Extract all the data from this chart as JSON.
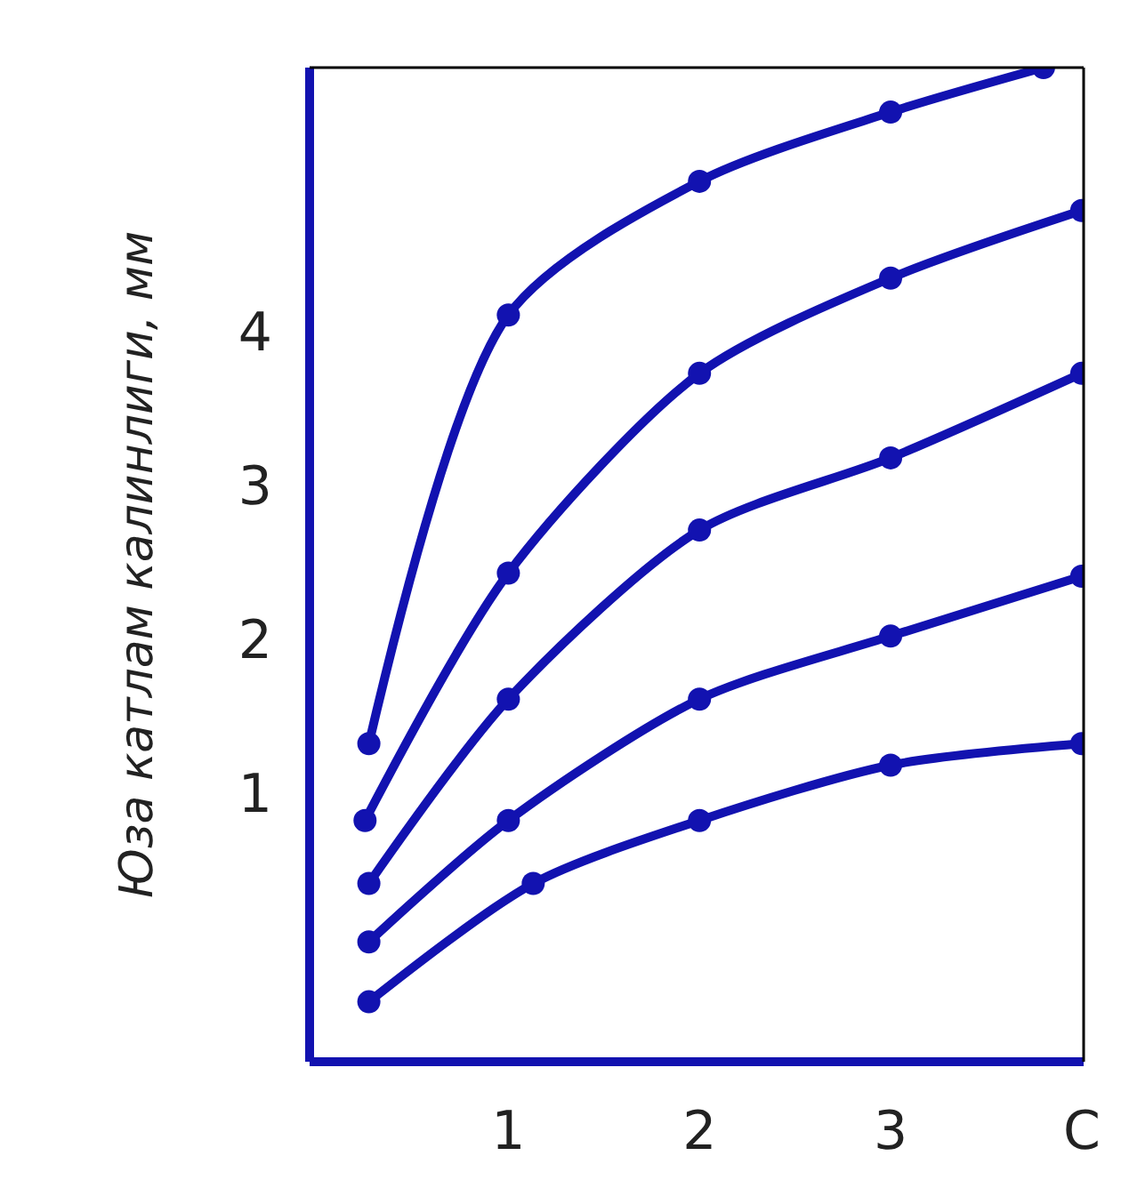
{
  "chart_data": {
    "type": "line",
    "ylabel": "Юза катлам калинлиги, мм",
    "xlim": [
      -0.04,
      4.01
    ],
    "ylim": [
      -0.75,
      5.72
    ],
    "xticks": [
      1,
      2,
      3,
      {
        "value": 4,
        "label": "C"
      }
    ],
    "yticks": [
      1,
      2,
      3,
      4
    ],
    "grid": false,
    "marker": "circle",
    "line_style": "solid",
    "series": [
      {
        "color": "#1212b0",
        "x": [
          0.27,
          1.0,
          2.0,
          3.0,
          3.8
        ],
        "values": [
          1.32,
          4.11,
          4.98,
          5.43,
          5.72
        ]
      },
      {
        "color": "#1212b0",
        "x": [
          0.25,
          1.0,
          2.0,
          3.0,
          4.0
        ],
        "values": [
          0.82,
          2.43,
          3.73,
          4.35,
          4.79
        ]
      },
      {
        "color": "#1212b0",
        "x": [
          0.27,
          1.0,
          2.0,
          3.0,
          4.0
        ],
        "values": [
          0.41,
          1.61,
          2.71,
          3.18,
          3.73
        ]
      },
      {
        "color": "#1212b0",
        "x": [
          0.27,
          1.0,
          2.0,
          3.0,
          4.0
        ],
        "values": [
          0.03,
          0.82,
          1.61,
          2.02,
          2.41
        ]
      },
      {
        "color": "#1212b0",
        "x": [
          0.27,
          1.13,
          2.0,
          3.0,
          4.0
        ],
        "values": [
          -0.36,
          0.41,
          0.82,
          1.18,
          1.32
        ]
      }
    ]
  }
}
